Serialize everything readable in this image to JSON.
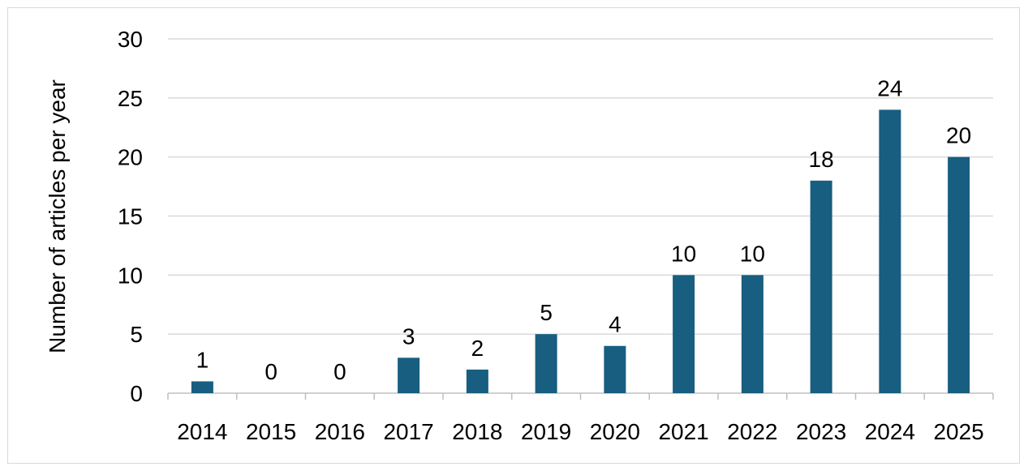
{
  "chart_data": {
    "type": "bar",
    "title": "",
    "xlabel": "",
    "ylabel": "Number of articles per year",
    "categories": [
      "2014",
      "2015",
      "2016",
      "2017",
      "2018",
      "2019",
      "2020",
      "2021",
      "2022",
      "2023",
      "2024",
      "2025"
    ],
    "values": [
      1,
      0,
      0,
      3,
      2,
      5,
      4,
      10,
      10,
      18,
      24,
      20
    ],
    "data_labels": [
      "1",
      "0",
      "0",
      "3",
      "2",
      "5",
      "4",
      "10",
      "10",
      "18",
      "24",
      "20"
    ],
    "ylim": [
      0,
      30
    ],
    "yticks": [
      0,
      5,
      10,
      15,
      20,
      25,
      30
    ],
    "grid": true,
    "legend": "none",
    "colors": {
      "bar": "#175e80",
      "grid": "#d9d9d9",
      "axis": "#bfbfbf"
    }
  }
}
